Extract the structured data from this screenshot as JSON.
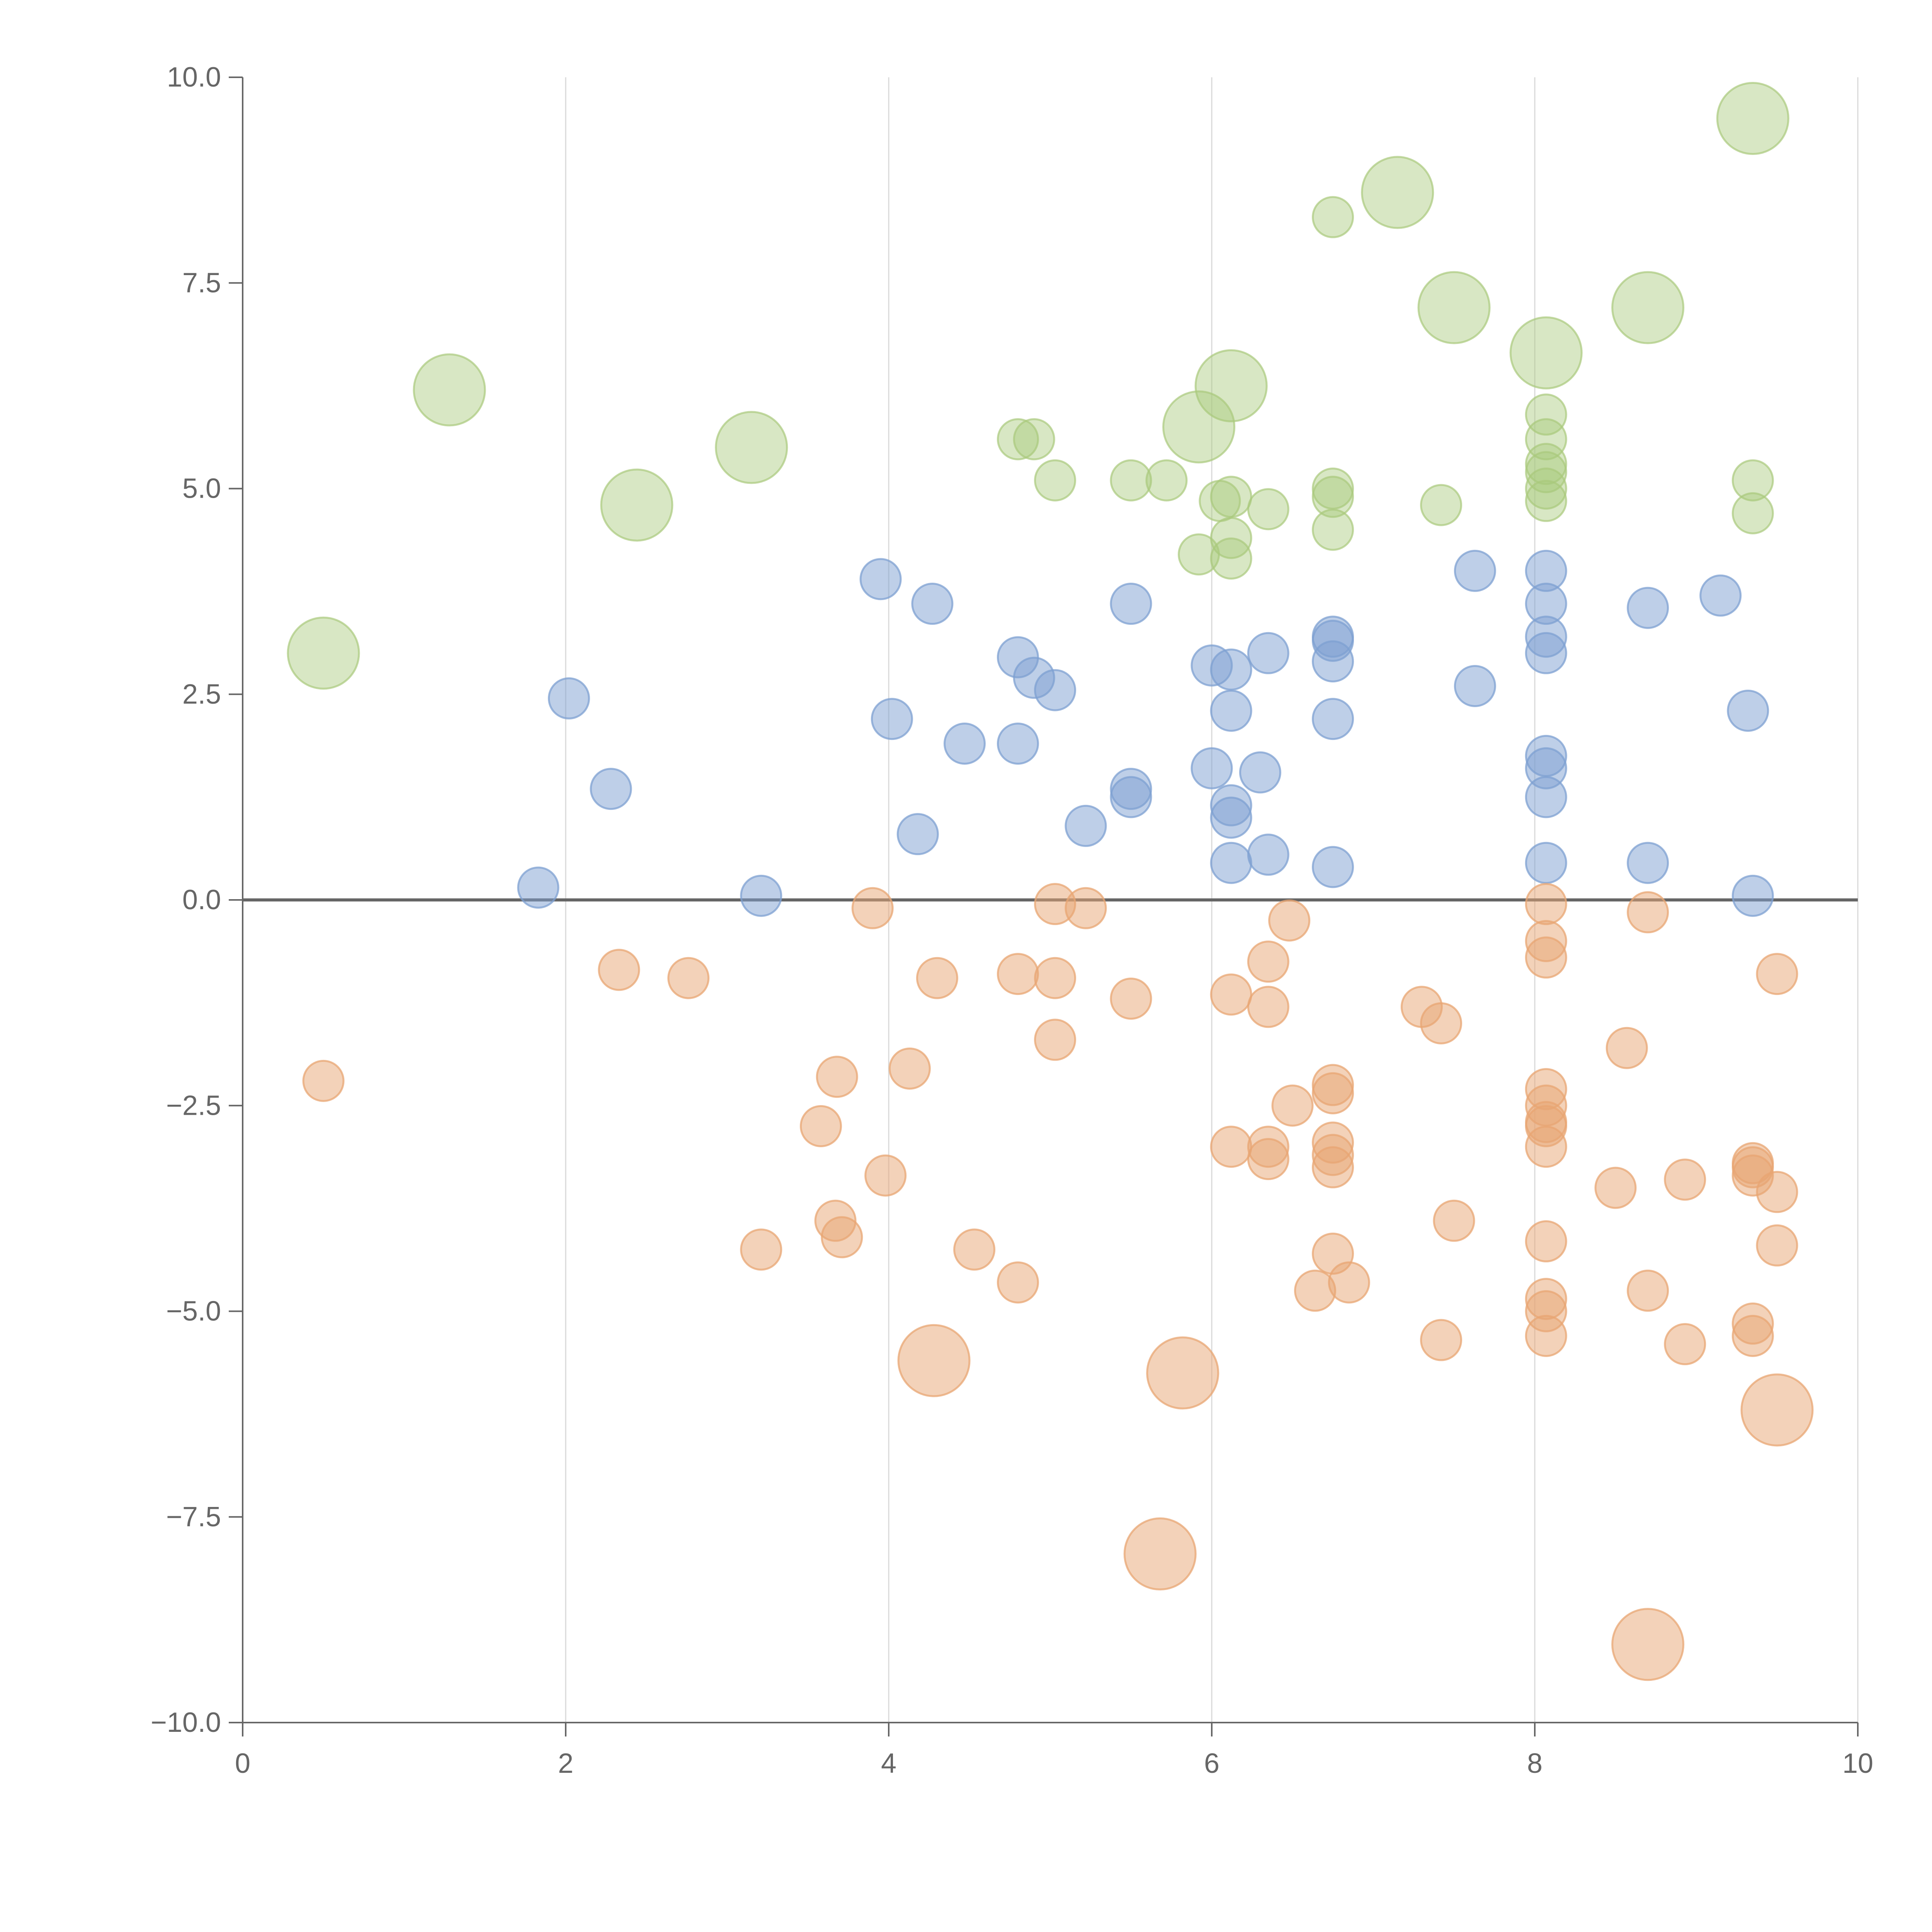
{
  "chart_data": {
    "type": "scatter",
    "subtype": "bubble",
    "title": "",
    "xlabel": "",
    "ylabel": "",
    "xlim": [
      0,
      10
    ],
    "ylim": [
      -10,
      10
    ],
    "x_ticks": [
      0,
      2,
      4,
      6,
      8,
      10
    ],
    "x_tick_labels": [
      "0",
      "2",
      "4",
      "6",
      "8",
      "10"
    ],
    "y_ticks": [
      10,
      7.5,
      5,
      2.5,
      0,
      -2.5,
      -5,
      -7.5,
      -10
    ],
    "y_tick_labels": [
      "10.0",
      "7.5",
      "5.0",
      "2.5",
      "0.0",
      "−2.5",
      "−5.0",
      "−7.5",
      "−10.0"
    ],
    "grid": {
      "x": true,
      "y": false
    },
    "zero_line": true,
    "legend": "none",
    "series": [
      {
        "color": "#a9c97c",
        "opacity": 0.45,
        "points": [
          {
            "x": 9.35,
            "y": 9.5,
            "r": 3
          },
          {
            "x": 7.15,
            "y": 8.6,
            "r": 3
          },
          {
            "x": 6.75,
            "y": 8.3,
            "r": 1
          },
          {
            "x": 7.5,
            "y": 7.2,
            "r": 3
          },
          {
            "x": 8.7,
            "y": 7.2,
            "r": 3
          },
          {
            "x": 8.07,
            "y": 6.65,
            "r": 3
          },
          {
            "x": 1.28,
            "y": 6.2,
            "r": 3
          },
          {
            "x": 6.12,
            "y": 6.25,
            "r": 3
          },
          {
            "x": 3.15,
            "y": 5.5,
            "r": 3
          },
          {
            "x": 5.92,
            "y": 5.75,
            "r": 3
          },
          {
            "x": 2.44,
            "y": 4.8,
            "r": 3
          },
          {
            "x": 0.5,
            "y": 3.0,
            "r": 3
          },
          {
            "x": 8.07,
            "y": 5.9,
            "r": 1
          },
          {
            "x": 4.8,
            "y": 5.6,
            "r": 1
          },
          {
            "x": 4.9,
            "y": 5.6,
            "r": 1
          },
          {
            "x": 8.07,
            "y": 5.6,
            "r": 1
          },
          {
            "x": 8.07,
            "y": 5.3,
            "r": 1
          },
          {
            "x": 8.07,
            "y": 5.2,
            "r": 1
          },
          {
            "x": 5.03,
            "y": 5.1,
            "r": 1
          },
          {
            "x": 5.5,
            "y": 5.1,
            "r": 1
          },
          {
            "x": 5.72,
            "y": 5.1,
            "r": 1
          },
          {
            "x": 9.35,
            "y": 5.1,
            "r": 1
          },
          {
            "x": 8.07,
            "y": 5.0,
            "r": 1
          },
          {
            "x": 6.75,
            "y": 5.0,
            "r": 1
          },
          {
            "x": 6.75,
            "y": 4.9,
            "r": 1
          },
          {
            "x": 6.12,
            "y": 4.9,
            "r": 1
          },
          {
            "x": 6.05,
            "y": 4.85,
            "r": 1
          },
          {
            "x": 8.07,
            "y": 4.85,
            "r": 1
          },
          {
            "x": 7.42,
            "y": 4.8,
            "r": 1
          },
          {
            "x": 6.35,
            "y": 4.75,
            "r": 1
          },
          {
            "x": 9.35,
            "y": 4.7,
            "r": 1
          },
          {
            "x": 6.75,
            "y": 4.5,
            "r": 1
          },
          {
            "x": 6.12,
            "y": 4.4,
            "r": 1
          },
          {
            "x": 5.92,
            "y": 4.2,
            "r": 1
          },
          {
            "x": 6.12,
            "y": 4.15,
            "r": 1
          }
        ]
      },
      {
        "color": "#7da0d2",
        "opacity": 0.5,
        "points": [
          {
            "x": 3.95,
            "y": 3.9,
            "r": 1
          },
          {
            "x": 7.63,
            "y": 4.0,
            "r": 1
          },
          {
            "x": 8.07,
            "y": 4.0,
            "r": 1
          },
          {
            "x": 9.15,
            "y": 3.7,
            "r": 1
          },
          {
            "x": 4.27,
            "y": 3.6,
            "r": 1
          },
          {
            "x": 5.5,
            "y": 3.6,
            "r": 1
          },
          {
            "x": 8.07,
            "y": 3.6,
            "r": 1
          },
          {
            "x": 8.7,
            "y": 3.55,
            "r": 1
          },
          {
            "x": 6.75,
            "y": 3.2,
            "r": 1
          },
          {
            "x": 6.75,
            "y": 3.15,
            "r": 1
          },
          {
            "x": 8.07,
            "y": 3.2,
            "r": 1
          },
          {
            "x": 6.35,
            "y": 3.0,
            "r": 1
          },
          {
            "x": 8.07,
            "y": 3.0,
            "r": 1
          },
          {
            "x": 4.8,
            "y": 2.95,
            "r": 1
          },
          {
            "x": 6.75,
            "y": 2.9,
            "r": 1
          },
          {
            "x": 6.0,
            "y": 2.85,
            "r": 1
          },
          {
            "x": 6.12,
            "y": 2.8,
            "r": 1
          },
          {
            "x": 4.9,
            "y": 2.7,
            "r": 1
          },
          {
            "x": 7.63,
            "y": 2.6,
            "r": 1
          },
          {
            "x": 5.03,
            "y": 2.55,
            "r": 1
          },
          {
            "x": 2.02,
            "y": 2.45,
            "r": 1
          },
          {
            "x": 6.12,
            "y": 2.3,
            "r": 1
          },
          {
            "x": 9.32,
            "y": 2.3,
            "r": 1
          },
          {
            "x": 4.02,
            "y": 2.2,
            "r": 1
          },
          {
            "x": 6.75,
            "y": 2.2,
            "r": 1
          },
          {
            "x": 4.8,
            "y": 1.9,
            "r": 1
          },
          {
            "x": 4.47,
            "y": 1.9,
            "r": 1
          },
          {
            "x": 8.07,
            "y": 1.75,
            "r": 1
          },
          {
            "x": 8.07,
            "y": 1.6,
            "r": 1
          },
          {
            "x": 6.0,
            "y": 1.6,
            "r": 1
          },
          {
            "x": 6.3,
            "y": 1.55,
            "r": 1
          },
          {
            "x": 2.28,
            "y": 1.35,
            "r": 1
          },
          {
            "x": 5.5,
            "y": 1.35,
            "r": 1
          },
          {
            "x": 5.5,
            "y": 1.25,
            "r": 1
          },
          {
            "x": 8.07,
            "y": 1.25,
            "r": 1
          },
          {
            "x": 6.12,
            "y": 1.15,
            "r": 1
          },
          {
            "x": 6.12,
            "y": 1.0,
            "r": 1
          },
          {
            "x": 5.22,
            "y": 0.9,
            "r": 1
          },
          {
            "x": 4.18,
            "y": 0.8,
            "r": 1
          },
          {
            "x": 6.35,
            "y": 0.55,
            "r": 1
          },
          {
            "x": 6.12,
            "y": 0.45,
            "r": 1
          },
          {
            "x": 8.07,
            "y": 0.45,
            "r": 1
          },
          {
            "x": 8.7,
            "y": 0.45,
            "r": 1
          },
          {
            "x": 6.75,
            "y": 0.4,
            "r": 1
          },
          {
            "x": 1.83,
            "y": 0.15,
            "r": 1
          },
          {
            "x": 3.21,
            "y": 0.05,
            "r": 1
          },
          {
            "x": 9.35,
            "y": 0.05,
            "r": 1
          }
        ]
      },
      {
        "color": "#e8a673",
        "opacity": 0.5,
        "points": [
          {
            "x": 8.07,
            "y": -0.05,
            "r": 1
          },
          {
            "x": 5.03,
            "y": -0.05,
            "r": 1
          },
          {
            "x": 5.22,
            "y": -0.1,
            "r": 1
          },
          {
            "x": 3.9,
            "y": -0.1,
            "r": 1
          },
          {
            "x": 8.7,
            "y": -0.15,
            "r": 1
          },
          {
            "x": 6.48,
            "y": -0.25,
            "r": 1
          },
          {
            "x": 8.07,
            "y": -0.5,
            "r": 1
          },
          {
            "x": 8.07,
            "y": -0.7,
            "r": 1
          },
          {
            "x": 6.35,
            "y": -0.75,
            "r": 1
          },
          {
            "x": 2.33,
            "y": -0.85,
            "r": 1
          },
          {
            "x": 4.8,
            "y": -0.9,
            "r": 1
          },
          {
            "x": 9.5,
            "y": -0.9,
            "r": 1
          },
          {
            "x": 2.76,
            "y": -0.95,
            "r": 1
          },
          {
            "x": 4.3,
            "y": -0.95,
            "r": 1
          },
          {
            "x": 5.03,
            "y": -0.95,
            "r": 1
          },
          {
            "x": 6.12,
            "y": -1.15,
            "r": 1
          },
          {
            "x": 5.5,
            "y": -1.2,
            "r": 1
          },
          {
            "x": 6.35,
            "y": -1.3,
            "r": 1
          },
          {
            "x": 7.3,
            "y": -1.3,
            "r": 1
          },
          {
            "x": 7.42,
            "y": -1.5,
            "r": 1
          },
          {
            "x": 5.03,
            "y": -1.7,
            "r": 1
          },
          {
            "x": 8.57,
            "y": -1.8,
            "r": 1
          },
          {
            "x": 4.13,
            "y": -2.05,
            "r": 1
          },
          {
            "x": 3.68,
            "y": -2.15,
            "r": 1
          },
          {
            "x": 0.5,
            "y": -2.2,
            "r": 1
          },
          {
            "x": 6.75,
            "y": -2.25,
            "r": 1
          },
          {
            "x": 8.07,
            "y": -2.3,
            "r": 1
          },
          {
            "x": 6.75,
            "y": -2.35,
            "r": 1
          },
          {
            "x": 6.5,
            "y": -2.5,
            "r": 1
          },
          {
            "x": 8.07,
            "y": -2.5,
            "r": 1
          },
          {
            "x": 8.07,
            "y": -2.7,
            "r": 1
          },
          {
            "x": 3.58,
            "y": -2.75,
            "r": 1
          },
          {
            "x": 8.07,
            "y": -2.75,
            "r": 1
          },
          {
            "x": 6.75,
            "y": -2.95,
            "r": 1
          },
          {
            "x": 6.12,
            "y": -3.0,
            "r": 1
          },
          {
            "x": 6.35,
            "y": -3.0,
            "r": 1
          },
          {
            "x": 8.07,
            "y": -3.0,
            "r": 1
          },
          {
            "x": 6.75,
            "y": -3.1,
            "r": 1
          },
          {
            "x": 6.35,
            "y": -3.15,
            "r": 1
          },
          {
            "x": 9.35,
            "y": -3.2,
            "r": 1
          },
          {
            "x": 6.75,
            "y": -3.25,
            "r": 1
          },
          {
            "x": 9.35,
            "y": -3.25,
            "r": 1
          },
          {
            "x": 3.98,
            "y": -3.35,
            "r": 1
          },
          {
            "x": 9.35,
            "y": -3.35,
            "r": 1
          },
          {
            "x": 8.93,
            "y": -3.4,
            "r": 1
          },
          {
            "x": 8.5,
            "y": -3.5,
            "r": 1
          },
          {
            "x": 9.5,
            "y": -3.55,
            "r": 1
          },
          {
            "x": 7.5,
            "y": -3.9,
            "r": 1
          },
          {
            "x": 3.67,
            "y": -3.9,
            "r": 1
          },
          {
            "x": 3.71,
            "y": -4.1,
            "r": 1
          },
          {
            "x": 8.07,
            "y": -4.15,
            "r": 1
          },
          {
            "x": 9.5,
            "y": -4.2,
            "r": 1
          },
          {
            "x": 4.53,
            "y": -4.25,
            "r": 1
          },
          {
            "x": 3.21,
            "y": -4.25,
            "r": 1
          },
          {
            "x": 6.75,
            "y": -4.3,
            "r": 1
          },
          {
            "x": 4.8,
            "y": -4.65,
            "r": 1
          },
          {
            "x": 6.85,
            "y": -4.65,
            "r": 1
          },
          {
            "x": 8.7,
            "y": -4.75,
            "r": 1
          },
          {
            "x": 6.64,
            "y": -4.75,
            "r": 1
          },
          {
            "x": 8.07,
            "y": -4.85,
            "r": 1
          },
          {
            "x": 8.07,
            "y": -5.0,
            "r": 1
          },
          {
            "x": 9.35,
            "y": -5.15,
            "r": 1
          },
          {
            "x": 9.35,
            "y": -5.3,
            "r": 1
          },
          {
            "x": 8.07,
            "y": -5.3,
            "r": 1
          },
          {
            "x": 7.42,
            "y": -5.35,
            "r": 1
          },
          {
            "x": 8.93,
            "y": -5.4,
            "r": 1
          },
          {
            "x": 4.28,
            "y": -5.6,
            "r": 3
          },
          {
            "x": 5.82,
            "y": -5.75,
            "r": 3
          },
          {
            "x": 9.5,
            "y": -6.2,
            "r": 3
          },
          {
            "x": 5.68,
            "y": -7.95,
            "r": 3
          },
          {
            "x": 8.7,
            "y": -9.05,
            "r": 3
          }
        ]
      }
    ]
  }
}
